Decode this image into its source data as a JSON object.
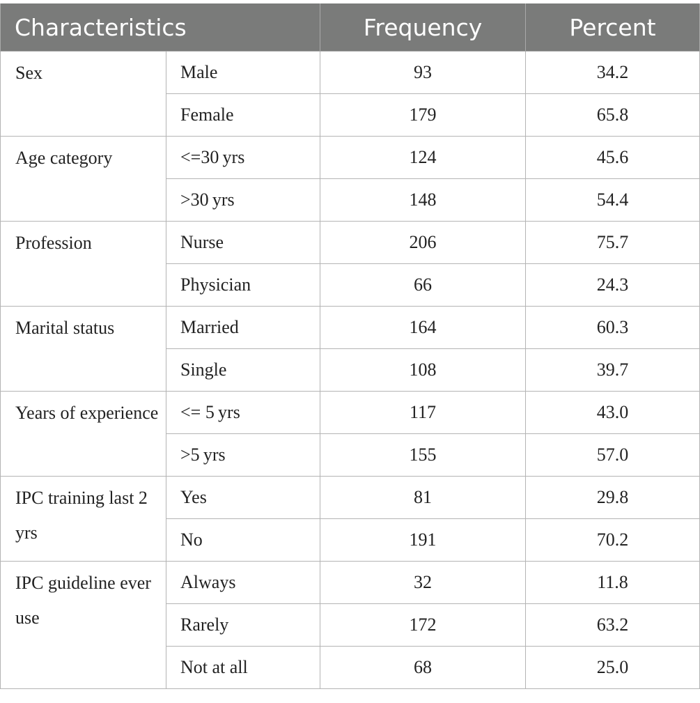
{
  "table": {
    "headers": [
      "Characteristics",
      "Frequency",
      "Percent"
    ],
    "groups": [
      {
        "category": "Sex",
        "rows": [
          {
            "label": "Male",
            "frequency": "93",
            "percent": "34.2"
          },
          {
            "label": "Female",
            "frequency": "179",
            "percent": "65.8"
          }
        ]
      },
      {
        "category": "Age category",
        "rows": [
          {
            "label": "<=30 yrs",
            "frequency": "124",
            "percent": "45.6"
          },
          {
            "label": ">30 yrs",
            "frequency": "148",
            "percent": "54.4"
          }
        ]
      },
      {
        "category": "Profession",
        "rows": [
          {
            "label": "Nurse",
            "frequency": "206",
            "percent": "75.7"
          },
          {
            "label": "Physician",
            "frequency": "66",
            "percent": "24.3"
          }
        ]
      },
      {
        "category": "Marital status",
        "rows": [
          {
            "label": "Married",
            "frequency": "164",
            "percent": "60.3"
          },
          {
            "label": "Single",
            "frequency": "108",
            "percent": "39.7"
          }
        ]
      },
      {
        "category": "Years of experience",
        "rows": [
          {
            "label": "<= 5 yrs",
            "frequency": "117",
            "percent": "43.0"
          },
          {
            "label": ">5 yrs",
            "frequency": "155",
            "percent": "57.0"
          }
        ]
      },
      {
        "category": "IPC training last 2 yrs",
        "rows": [
          {
            "label": "Yes",
            "frequency": "81",
            "percent": "29.8"
          },
          {
            "label": "No",
            "frequency": "191",
            "percent": "70.2"
          }
        ]
      },
      {
        "category": "IPC guideline ever use",
        "rows": [
          {
            "label": "Always",
            "frequency": "32",
            "percent": "11.8"
          },
          {
            "label": "Rarely",
            "frequency": "172",
            "percent": "63.2"
          },
          {
            "label": "Not at all",
            "frequency": "68",
            "percent": "25.0"
          }
        ]
      }
    ]
  }
}
